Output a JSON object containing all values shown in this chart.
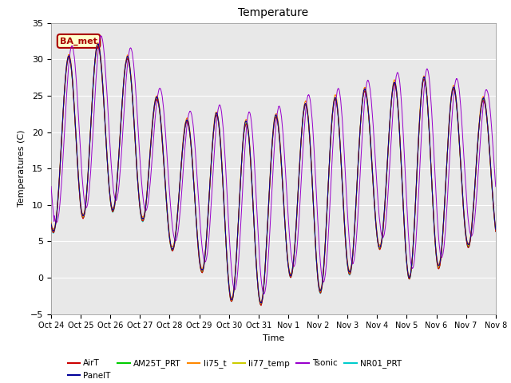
{
  "title": "Temperature",
  "xlabel": "Time",
  "ylabel": "Temperatures (C)",
  "ylim": [
    -5,
    35
  ],
  "yticks": [
    -5,
    0,
    5,
    10,
    15,
    20,
    25,
    30,
    35
  ],
  "background_color": "#e8e8e8",
  "series_colors": {
    "AirT": "#cc0000",
    "PanelT": "#000099",
    "AM25T_PRT": "#00cc00",
    "li75_t": "#ff8800",
    "li77_temp": "#cccc00",
    "Tsonic": "#9900cc",
    "NR01_PRT": "#00cccc"
  },
  "annotation_text": "BA_met",
  "annotation_color": "#aa0000",
  "annotation_bg": "#ffffcc",
  "annotation_border": "#aa0000",
  "x_tick_labels": [
    "Oct 24",
    "Oct 25",
    "Oct 26",
    "Oct 27",
    "Oct 28",
    "Oct 29",
    "Oct 30",
    "Oct 31",
    "Nov 1",
    "Nov 2",
    "Nov 3",
    "Nov 4",
    "Nov 5",
    "Nov 6",
    "Nov 7",
    "Nov 8"
  ],
  "n_points": 15000,
  "duration_days": 15
}
